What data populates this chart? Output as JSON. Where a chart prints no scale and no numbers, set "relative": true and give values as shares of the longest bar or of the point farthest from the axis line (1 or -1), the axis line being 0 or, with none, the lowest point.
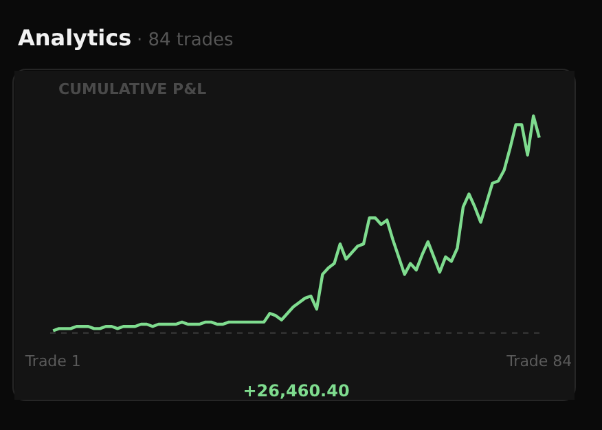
{
  "chart_data": {
    "type": "line",
    "title": "Analytics",
    "subtitle": "· 84 trades",
    "relative": true,
    "annotations": [
      "CUMULATIVE P&L",
      "+26,460.40"
    ],
    "categories": [
      "Trade 1",
      null,
      null,
      null,
      null,
      null,
      null,
      null,
      null,
      null,
      null,
      null,
      null,
      null,
      null,
      null,
      null,
      null,
      null,
      null,
      null,
      null,
      null,
      null,
      null,
      null,
      null,
      null,
      null,
      null,
      null,
      null,
      null,
      null,
      null,
      null,
      null,
      null,
      null,
      null,
      null,
      null,
      null,
      null,
      null,
      null,
      null,
      null,
      null,
      null,
      null,
      null,
      null,
      null,
      null,
      null,
      null,
      null,
      null,
      null,
      null,
      null,
      null,
      null,
      null,
      null,
      null,
      null,
      null,
      null,
      null,
      null,
      null,
      null,
      null,
      null,
      null,
      null,
      null,
      null,
      null,
      null,
      null,
      "Trade 84"
    ],
    "grid": false,
    "marker": "none",
    "line_style": "solid",
    "ref_lines": [
      {
        "axis": "y",
        "value": 0,
        "label": null,
        "color": "#3a3a3a",
        "line_style": "dashed"
      }
    ],
    "series": [
      {
        "color": "#7fdc8f",
        "values": [
          0.01,
          0.02,
          0.02,
          0.02,
          0.03,
          0.03,
          0.03,
          0.02,
          0.02,
          0.03,
          0.03,
          0.02,
          0.03,
          0.03,
          0.03,
          0.04,
          0.04,
          0.03,
          0.04,
          0.04,
          0.04,
          0.04,
          0.05,
          0.04,
          0.04,
          0.04,
          0.05,
          0.05,
          0.04,
          0.04,
          0.05,
          0.05,
          0.05,
          0.05,
          0.05,
          0.05,
          0.05,
          0.09,
          0.08,
          0.06,
          0.09,
          0.12,
          0.14,
          0.16,
          0.17,
          0.11,
          0.27,
          0.3,
          0.32,
          0.41,
          0.34,
          0.37,
          0.4,
          0.41,
          0.53,
          0.53,
          0.5,
          0.52,
          0.43,
          0.35,
          0.27,
          0.32,
          0.29,
          0.36,
          0.42,
          0.35,
          0.28,
          0.35,
          0.33,
          0.39,
          0.58,
          0.64,
          0.58,
          0.51,
          0.6,
          0.69,
          0.7,
          0.75,
          0.85,
          0.96,
          0.96,
          0.82,
          1,
          0.9
        ]
      }
    ]
  }
}
